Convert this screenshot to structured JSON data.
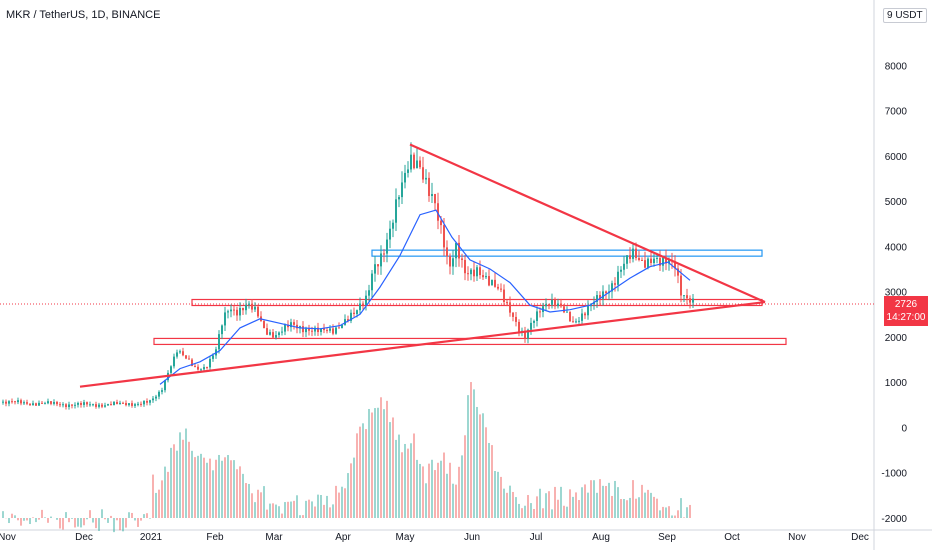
{
  "header": {
    "symbol_line": "MKR / TetherUS, 1D, BINANCE",
    "unit_label": "9 USDT"
  },
  "price_tag": {
    "price": "2726",
    "countdown": "14:27:00"
  },
  "colors": {
    "up": "#26a69a",
    "down": "#ef5350",
    "trend": "#f23645",
    "ma": "#2962ff",
    "resist": "#2196f3"
  },
  "chart_data": {
    "type": "candlestick",
    "title": "MKR / TetherUS, 1D, BINANCE",
    "ylim": [
      -2000,
      9000
    ],
    "y_ticks": [
      -2000,
      -1000,
      0,
      1000,
      2000,
      3000,
      4000,
      5000,
      6000,
      7000,
      8000
    ],
    "y_tick_labels": [
      "-2000",
      "-1000",
      "0",
      "1000",
      "2000",
      "3000",
      "4000",
      "5000",
      "6000",
      "7000",
      "8000"
    ],
    "x_ticks": [
      "Nov",
      "Dec",
      "2021",
      "Feb",
      "Mar",
      "Apr",
      "May",
      "Jun",
      "Jul",
      "Aug",
      "Sep",
      "Oct",
      "Nov",
      "Dec"
    ],
    "price_path": [
      [
        0,
        560
      ],
      [
        40,
        530
      ],
      [
        80,
        500
      ],
      [
        120,
        510
      ],
      [
        150,
        560
      ],
      [
        160,
        800
      ],
      [
        168,
        1300
      ],
      [
        176,
        1700
      ],
      [
        185,
        1500
      ],
      [
        195,
        1300
      ],
      [
        205,
        1350
      ],
      [
        215,
        1700
      ],
      [
        222,
        2350
      ],
      [
        228,
        2650
      ],
      [
        236,
        2600
      ],
      [
        246,
        2700
      ],
      [
        256,
        2500
      ],
      [
        264,
        2150
      ],
      [
        275,
        2050
      ],
      [
        290,
        2250
      ],
      [
        305,
        2200
      ],
      [
        320,
        2100
      ],
      [
        332,
        2150
      ],
      [
        342,
        2350
      ],
      [
        355,
        2500
      ],
      [
        366,
        2900
      ],
      [
        372,
        3600
      ],
      [
        382,
        3800
      ],
      [
        390,
        4300
      ],
      [
        398,
        5200
      ],
      [
        408,
        6050
      ],
      [
        416,
        5800
      ],
      [
        426,
        5200
      ],
      [
        434,
        5000
      ],
      [
        442,
        4300
      ],
      [
        448,
        3500
      ],
      [
        455,
        3900
      ],
      [
        464,
        3400
      ],
      [
        476,
        3550
      ],
      [
        488,
        3150
      ],
      [
        500,
        3000
      ],
      [
        510,
        2600
      ],
      [
        518,
        2150
      ],
      [
        524,
        1950
      ],
      [
        532,
        2350
      ],
      [
        540,
        2700
      ],
      [
        548,
        2800
      ],
      [
        560,
        2600
      ],
      [
        572,
        2350
      ],
      [
        584,
        2550
      ],
      [
        596,
        2800
      ],
      [
        608,
        3100
      ],
      [
        620,
        3500
      ],
      [
        632,
        3800
      ],
      [
        642,
        3700
      ],
      [
        652,
        3750
      ],
      [
        660,
        3550
      ],
      [
        668,
        3650
      ],
      [
        674,
        3650
      ],
      [
        680,
        3050
      ],
      [
        686,
        2850
      ],
      [
        692,
        2726
      ]
    ],
    "ma_path": [
      [
        160,
        950
      ],
      [
        180,
        1300
      ],
      [
        200,
        1450
      ],
      [
        220,
        1700
      ],
      [
        240,
        2200
      ],
      [
        260,
        2400
      ],
      [
        280,
        2300
      ],
      [
        300,
        2200
      ],
      [
        320,
        2180
      ],
      [
        340,
        2250
      ],
      [
        360,
        2500
      ],
      [
        380,
        3100
      ],
      [
        400,
        3800
      ],
      [
        420,
        4700
      ],
      [
        436,
        4800
      ],
      [
        452,
        4200
      ],
      [
        470,
        3700
      ],
      [
        490,
        3500
      ],
      [
        510,
        3200
      ],
      [
        530,
        2700
      ],
      [
        550,
        2550
      ],
      [
        570,
        2600
      ],
      [
        590,
        2700
      ],
      [
        610,
        3000
      ],
      [
        630,
        3300
      ],
      [
        650,
        3550
      ],
      [
        668,
        3650
      ],
      [
        690,
        3250
      ]
    ],
    "volume_path": [
      [
        160,
        -1000
      ],
      [
        180,
        120
      ],
      [
        215,
        -600
      ],
      [
        230,
        -300
      ],
      [
        250,
        -1100
      ],
      [
        275,
        -1450
      ],
      [
        300,
        -1500
      ],
      [
        330,
        -1350
      ],
      [
        345,
        -1100
      ],
      [
        360,
        300
      ],
      [
        385,
        800
      ],
      [
        400,
        -200
      ],
      [
        412,
        0
      ],
      [
        425,
        -900
      ],
      [
        440,
        -350
      ],
      [
        455,
        -1000
      ],
      [
        470,
        1150
      ],
      [
        500,
        -900
      ],
      [
        520,
        -1350
      ],
      [
        560,
        -1300
      ],
      [
        600,
        -1000
      ],
      [
        640,
        -1200
      ],
      [
        680,
        -1550
      ]
    ],
    "trendlines": [
      {
        "name": "upper",
        "from": [
          410,
          6250
        ],
        "to": [
          765,
          2770
        ]
      },
      {
        "name": "lower",
        "from": [
          80,
          900
        ],
        "to": [
          765,
          2770
        ]
      }
    ],
    "horizontal_zones": [
      {
        "x_from": 192,
        "x_to": 762,
        "y": 2760,
        "style": "support"
      },
      {
        "x_from": 154,
        "x_to": 786,
        "y": 1900,
        "style": "support"
      },
      {
        "x_from": 372,
        "x_to": 762,
        "y": 3850,
        "style": "resistance"
      }
    ],
    "last_price": 2726
  }
}
